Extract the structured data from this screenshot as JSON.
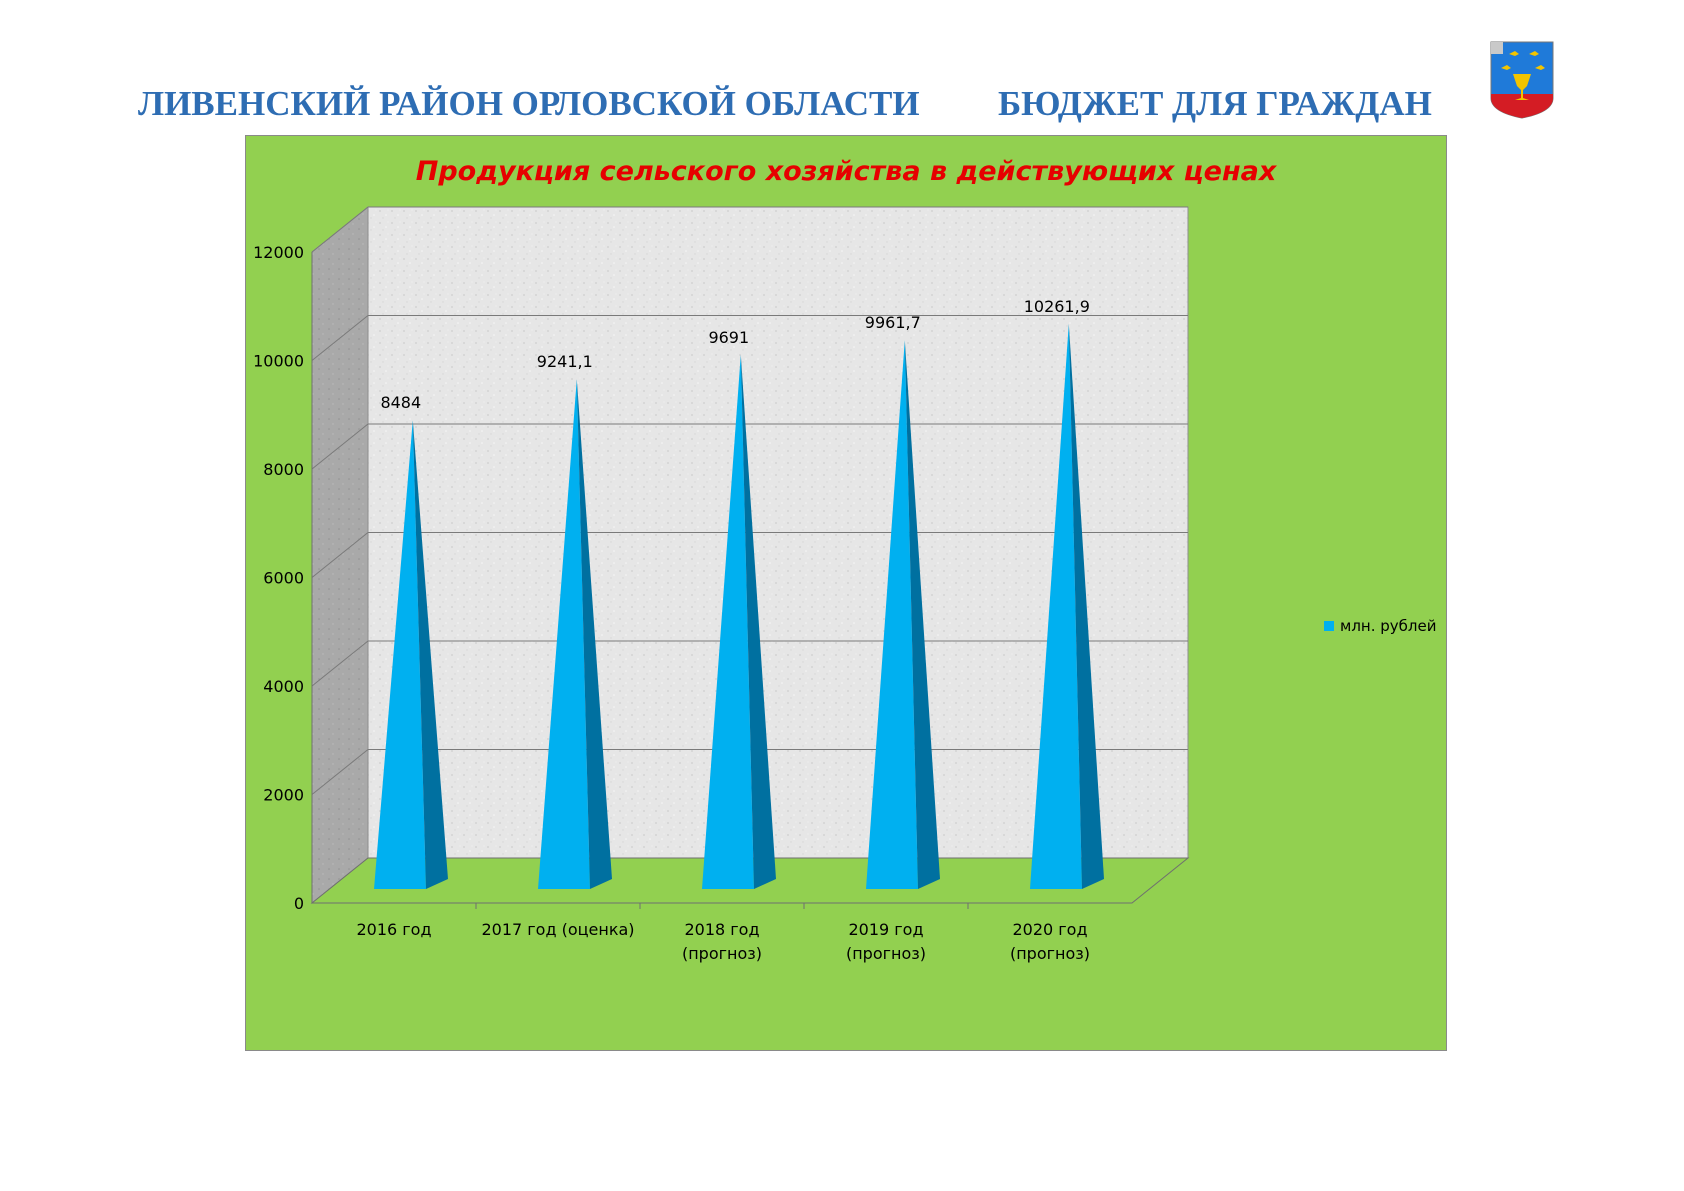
{
  "header": {
    "left_text": "ЛИВЕНСКИЙ РАЙОН ОРЛОВСКОЙ ОБЛАСТИ",
    "right_text": "БЮДЖЕТ ДЛЯ ГРАЖДАН"
  },
  "colors": {
    "header_text": "#2e6db3",
    "panel_background": "#92d050",
    "title_text": "#e60000",
    "series_front": "#00b0f0",
    "series_side": "#0070a0",
    "wall": "#e3e3e3",
    "side_wall": "#a6a6a6"
  },
  "chart_data": {
    "type": "bar",
    "style": "3d-cone",
    "title": "Продукция сельского хозяйства в действующих ценах",
    "categories": [
      [
        "2016 год"
      ],
      [
        "2017 год (оценка)"
      ],
      [
        "2018 год",
        "(прогноз)"
      ],
      [
        "2019 год",
        "(прогноз)"
      ],
      [
        "2020 год",
        "(прогноз)"
      ]
    ],
    "series": [
      {
        "name": "млн. рублей",
        "values": [
          8484,
          9241.1,
          9691,
          9961.7,
          10261.9
        ],
        "labels": [
          "8484",
          "9241,1",
          "9691",
          "9961,7",
          "10261,9"
        ]
      }
    ],
    "ylim": [
      0,
      12000
    ],
    "yticks": [
      0,
      2000,
      4000,
      6000,
      8000,
      10000,
      12000
    ],
    "grid": true,
    "legend": "right"
  }
}
